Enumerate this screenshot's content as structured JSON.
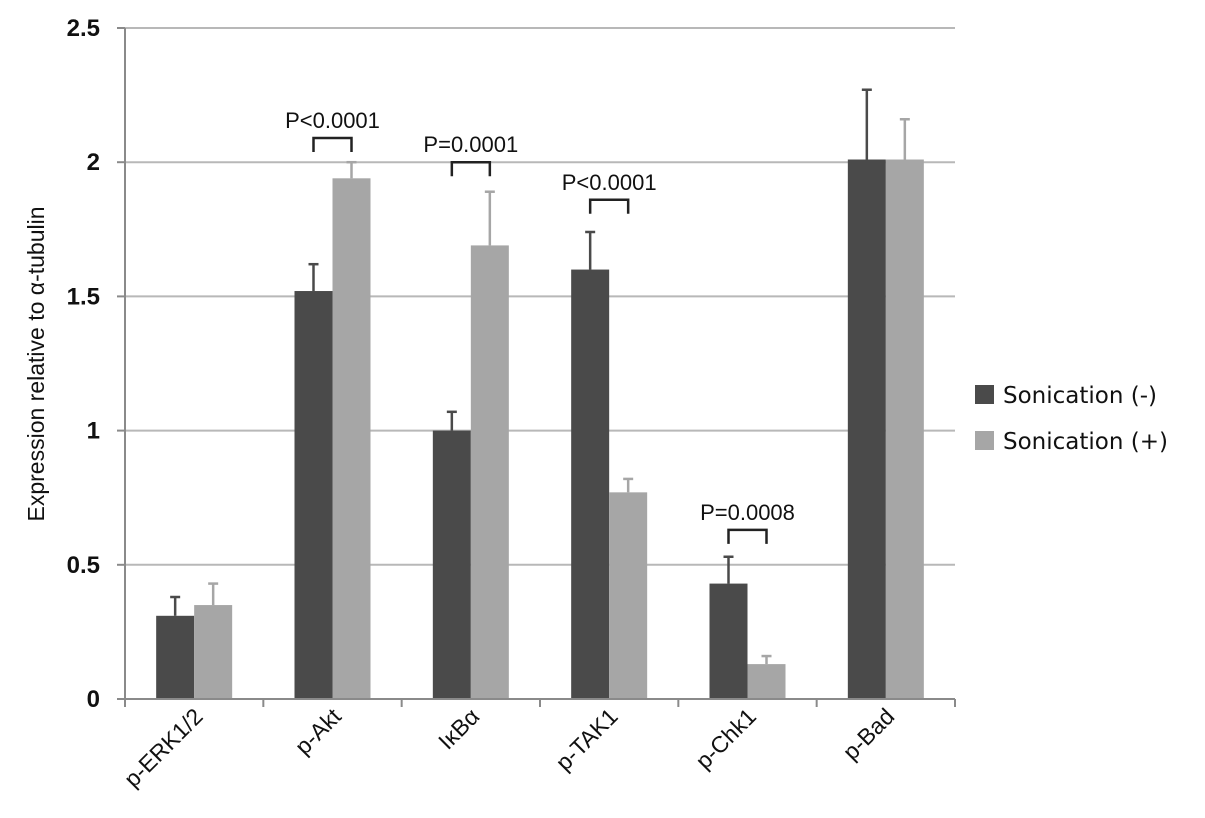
{
  "colors": {
    "series_minus": "#4a4a4a",
    "series_plus": "#a6a6a6",
    "grid": "#b8b8b8",
    "axis": "#8a8a8a",
    "bracket": "#222222"
  },
  "chart_data": {
    "type": "bar",
    "title": "",
    "xlabel": "",
    "ylabel": "Expression relative to α-tubulin",
    "ylim": [
      0,
      2.5
    ],
    "yticks": [
      "0",
      "0.5",
      "1",
      "1.5",
      "2",
      "2.5"
    ],
    "grid": true,
    "legend_position": "right",
    "categories": [
      "p-ERK1/2",
      "p-Akt",
      "IκBα",
      "p-TAK1",
      "p-Chk1",
      "p-Bad"
    ],
    "series": [
      {
        "name": "Sonication (-)",
        "values": [
          0.31,
          1.52,
          1.0,
          1.6,
          0.43,
          2.01
        ],
        "errors": [
          0.07,
          0.1,
          0.07,
          0.14,
          0.1,
          0.26
        ]
      },
      {
        "name": "Sonication (+)",
        "values": [
          0.35,
          1.94,
          1.69,
          0.77,
          0.13,
          2.01
        ],
        "errors": [
          0.08,
          0.06,
          0.2,
          0.05,
          0.03,
          0.15
        ]
      }
    ],
    "annotations": [
      {
        "category": "p-Akt",
        "text": "P<0.0001",
        "value": 2.09
      },
      {
        "category": "IκBα",
        "text": "P=0.0001",
        "value": 2.0
      },
      {
        "category": "p-TAK1",
        "text": "P<0.0001",
        "value": 1.86
      },
      {
        "category": "p-Chk1",
        "text": "P=0.0008",
        "value": 0.63
      }
    ]
  }
}
